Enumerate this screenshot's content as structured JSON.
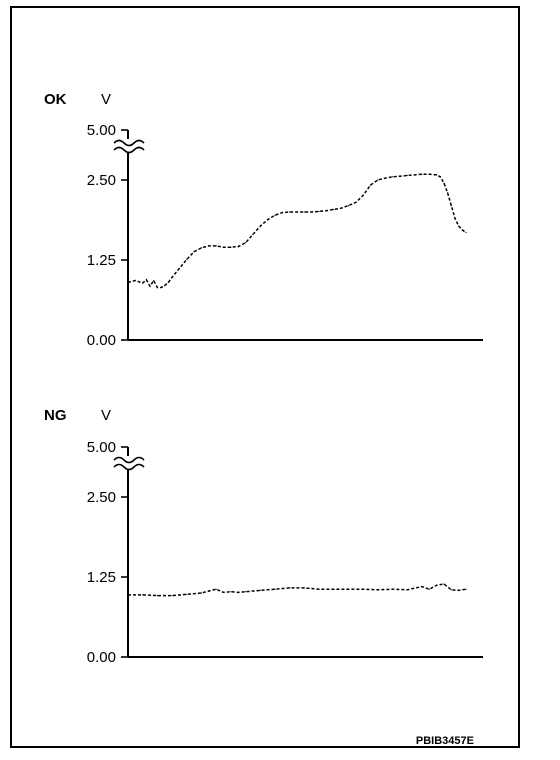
{
  "figure_code": "PBIB3457E",
  "chart_data": [
    {
      "type": "line",
      "panel_label": "OK",
      "unit_label": "V",
      "y_tick_labels": [
        "5.00",
        "2.50",
        "1.25",
        "0.00"
      ],
      "ylim": [
        0,
        5
      ],
      "axis_break": "between 2.50 and 5.00",
      "line_style": "dashed",
      "x": [
        0,
        2,
        4,
        5,
        6,
        7,
        8,
        9,
        10,
        11,
        12,
        14,
        16,
        18,
        20,
        22,
        24,
        26,
        28,
        30,
        32,
        34,
        36,
        38,
        40,
        42,
        44,
        46,
        48,
        50,
        52,
        54,
        56,
        58,
        60,
        62,
        64,
        66,
        68,
        70,
        72,
        74,
        76,
        78,
        80,
        82,
        84,
        85,
        86,
        87,
        88,
        89,
        90,
        91,
        92
      ],
      "values": [
        0.9,
        0.93,
        0.89,
        0.94,
        0.84,
        0.93,
        0.82,
        0.82,
        0.85,
        0.9,
        0.98,
        1.12,
        1.26,
        1.38,
        1.44,
        1.47,
        1.47,
        1.45,
        1.45,
        1.46,
        1.52,
        1.65,
        1.78,
        1.88,
        1.95,
        1.99,
        2.0,
        2.0,
        2.0,
        2.0,
        2.01,
        2.02,
        2.04,
        2.06,
        2.1,
        2.15,
        2.26,
        2.42,
        2.5,
        2.53,
        2.55,
        2.56,
        2.57,
        2.58,
        2.59,
        2.59,
        2.58,
        2.55,
        2.45,
        2.3,
        2.1,
        1.9,
        1.78,
        1.72,
        1.68
      ]
    },
    {
      "type": "line",
      "panel_label": "NG",
      "unit_label": "V",
      "y_tick_labels": [
        "5.00",
        "2.50",
        "1.25",
        "0.00"
      ],
      "ylim": [
        0,
        5
      ],
      "axis_break": "between 2.50 and 5.00",
      "line_style": "dashed",
      "x": [
        0,
        4,
        8,
        12,
        16,
        20,
        24,
        26,
        28,
        30,
        32,
        36,
        40,
        44,
        48,
        52,
        56,
        60,
        64,
        68,
        72,
        76,
        80,
        82,
        84,
        86,
        88,
        90,
        92
      ],
      "values": [
        0.97,
        0.97,
        0.96,
        0.96,
        0.98,
        1.0,
        1.06,
        1.01,
        1.02,
        1.01,
        1.02,
        1.04,
        1.06,
        1.08,
        1.08,
        1.06,
        1.06,
        1.06,
        1.06,
        1.05,
        1.06,
        1.05,
        1.1,
        1.06,
        1.12,
        1.14,
        1.05,
        1.04,
        1.06
      ]
    }
  ]
}
